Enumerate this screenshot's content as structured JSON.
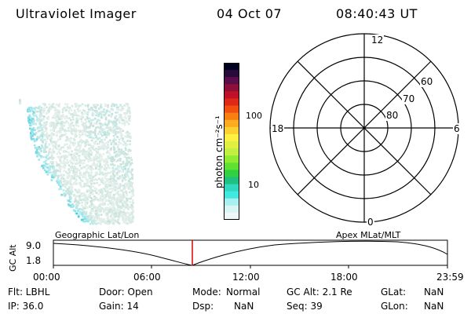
{
  "header": {
    "instrument": "Ultraviolet Imager",
    "date": "04 Oct 07",
    "time": "08:40:43 UT"
  },
  "colorbar": {
    "label": "photon cm⁻²s⁻¹",
    "tick_labels": [
      "100",
      "10"
    ],
    "colors": [
      "#000020",
      "#2a0a3a",
      "#5a0f4a",
      "#8e1038",
      "#c0102a",
      "#e02818",
      "#f25010",
      "#f88010",
      "#fcac20",
      "#fcd030",
      "#fcf040",
      "#e0f040",
      "#c0f040",
      "#90ec30",
      "#60e030",
      "#30d040",
      "#20c080",
      "#30d8c0",
      "#40e8e0",
      "#a8f0f0",
      "#d8f4f4",
      "#eef8f8"
    ]
  },
  "polar_grid": {
    "mlt_labels": {
      "top": "12",
      "left": "18",
      "right": "6",
      "bottom": "0"
    },
    "mlat_labels": [
      "60",
      "70",
      "80"
    ]
  },
  "timeline": {
    "y_axis_label": "GC Alt",
    "y_ticks": [
      "9.0",
      "1.8"
    ],
    "left_title": "Geographic Lat/Lon",
    "right_title": "Apex MLat/MLT",
    "x_ticks": [
      "00:00",
      "06:00",
      "12:00",
      "18:00",
      "23:59"
    ]
  },
  "status": {
    "flt": "Flt: LBHL",
    "ip": "IP: 36.0",
    "door": "Door: Open",
    "gain": "Gain: 14",
    "mode_label": "Mode:",
    "mode_value": "Normal",
    "dsp_label": "Dsp:",
    "dsp_value": "NaN",
    "gc_alt": "GC Alt: 2.1 Re",
    "seq": "Seq: 39",
    "glat_label": "GLat:",
    "glat_value": "NaN",
    "glon_label": "GLon:",
    "glon_value": "NaN"
  }
}
